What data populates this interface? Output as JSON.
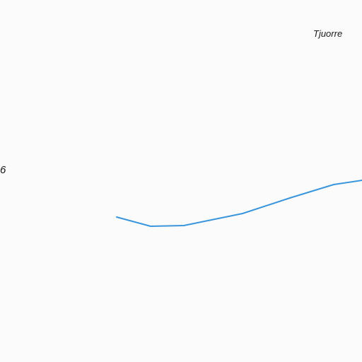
{
  "map": {
    "labels": {
      "place": "Tjuorre",
      "road_ref": "6"
    },
    "colors": {
      "background": "#fbfbfb",
      "road": "#3a96dc",
      "text": "#1a1a1a"
    }
  }
}
